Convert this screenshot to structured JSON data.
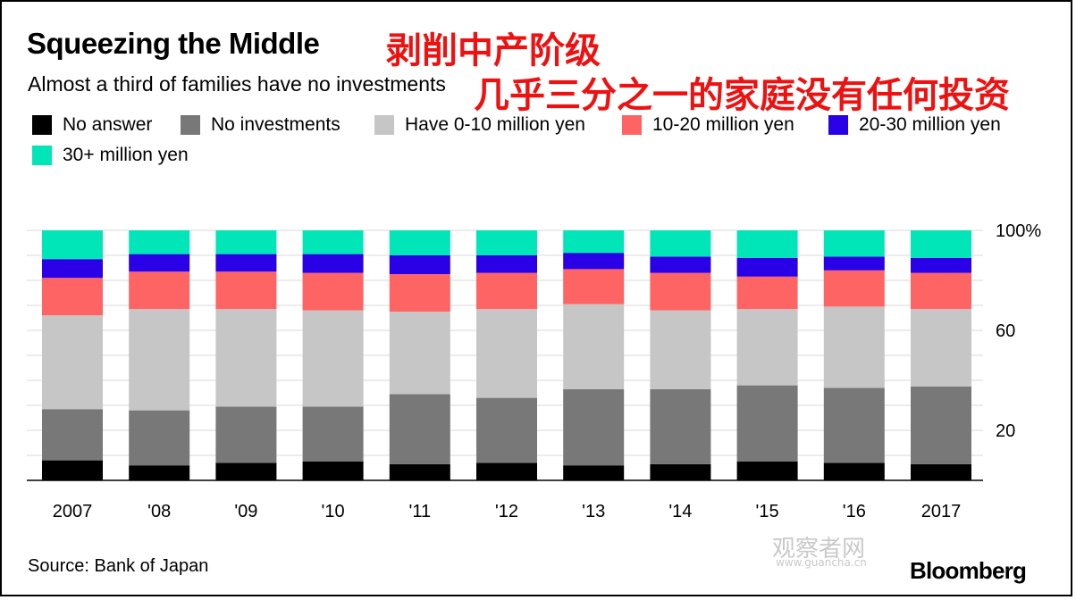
{
  "title": "Squeezing the Middle",
  "subtitle": "Almost a third of families have no investments",
  "cn_title": "剥削中产阶级",
  "cn_subtitle": "几乎三分之一的家庭没有任何投资",
  "source": "Source: Bank of Japan",
  "brand": "Bloomberg",
  "watermark": "观察者网",
  "watermark_url": "www.guancha.cn",
  "chart_data": {
    "type": "bar",
    "stacked": true,
    "categories": [
      "2007",
      "'08",
      "'09",
      "'10",
      "'11",
      "'12",
      "'13",
      "'14",
      "'15",
      "'16",
      "2017"
    ],
    "ylim": [
      0,
      100
    ],
    "yticks": [
      20,
      60,
      "100%"
    ],
    "ytick_values": [
      20,
      60,
      100
    ],
    "gridlines": [
      10,
      20,
      30,
      40,
      50,
      60,
      70,
      80,
      90,
      100
    ],
    "series": [
      {
        "name": "No answer",
        "color": "#000000",
        "values": [
          8,
          6,
          7,
          7.5,
          6.5,
          7,
          6,
          6.5,
          7.5,
          7,
          6.5
        ]
      },
      {
        "name": "No investments",
        "color": "#787878",
        "values": [
          20.5,
          22,
          22.5,
          22,
          28,
          26,
          30.5,
          30,
          30.5,
          30,
          31
        ]
      },
      {
        "name": "Have 0-10 million yen",
        "color": "#c6c6c6",
        "values": [
          37.5,
          40.5,
          39,
          38.5,
          33,
          35.5,
          34,
          31.5,
          30.5,
          32.5,
          31
        ]
      },
      {
        "name": "10-20 million yen",
        "color": "#ff6464",
        "values": [
          15,
          15,
          15,
          15,
          15,
          14.5,
          14,
          15,
          13,
          14.5,
          14.5
        ]
      },
      {
        "name": "20-30 million yen",
        "color": "#2a00e6",
        "values": [
          7.5,
          7,
          7,
          7.5,
          7.5,
          7,
          6.5,
          6.5,
          7.5,
          5.5,
          6
        ]
      },
      {
        "name": "30+ million yen",
        "color": "#00e6b8",
        "values": [
          11.5,
          9.5,
          9.5,
          9.5,
          10,
          10,
          9,
          10.5,
          11,
          10.5,
          11
        ]
      }
    ]
  }
}
